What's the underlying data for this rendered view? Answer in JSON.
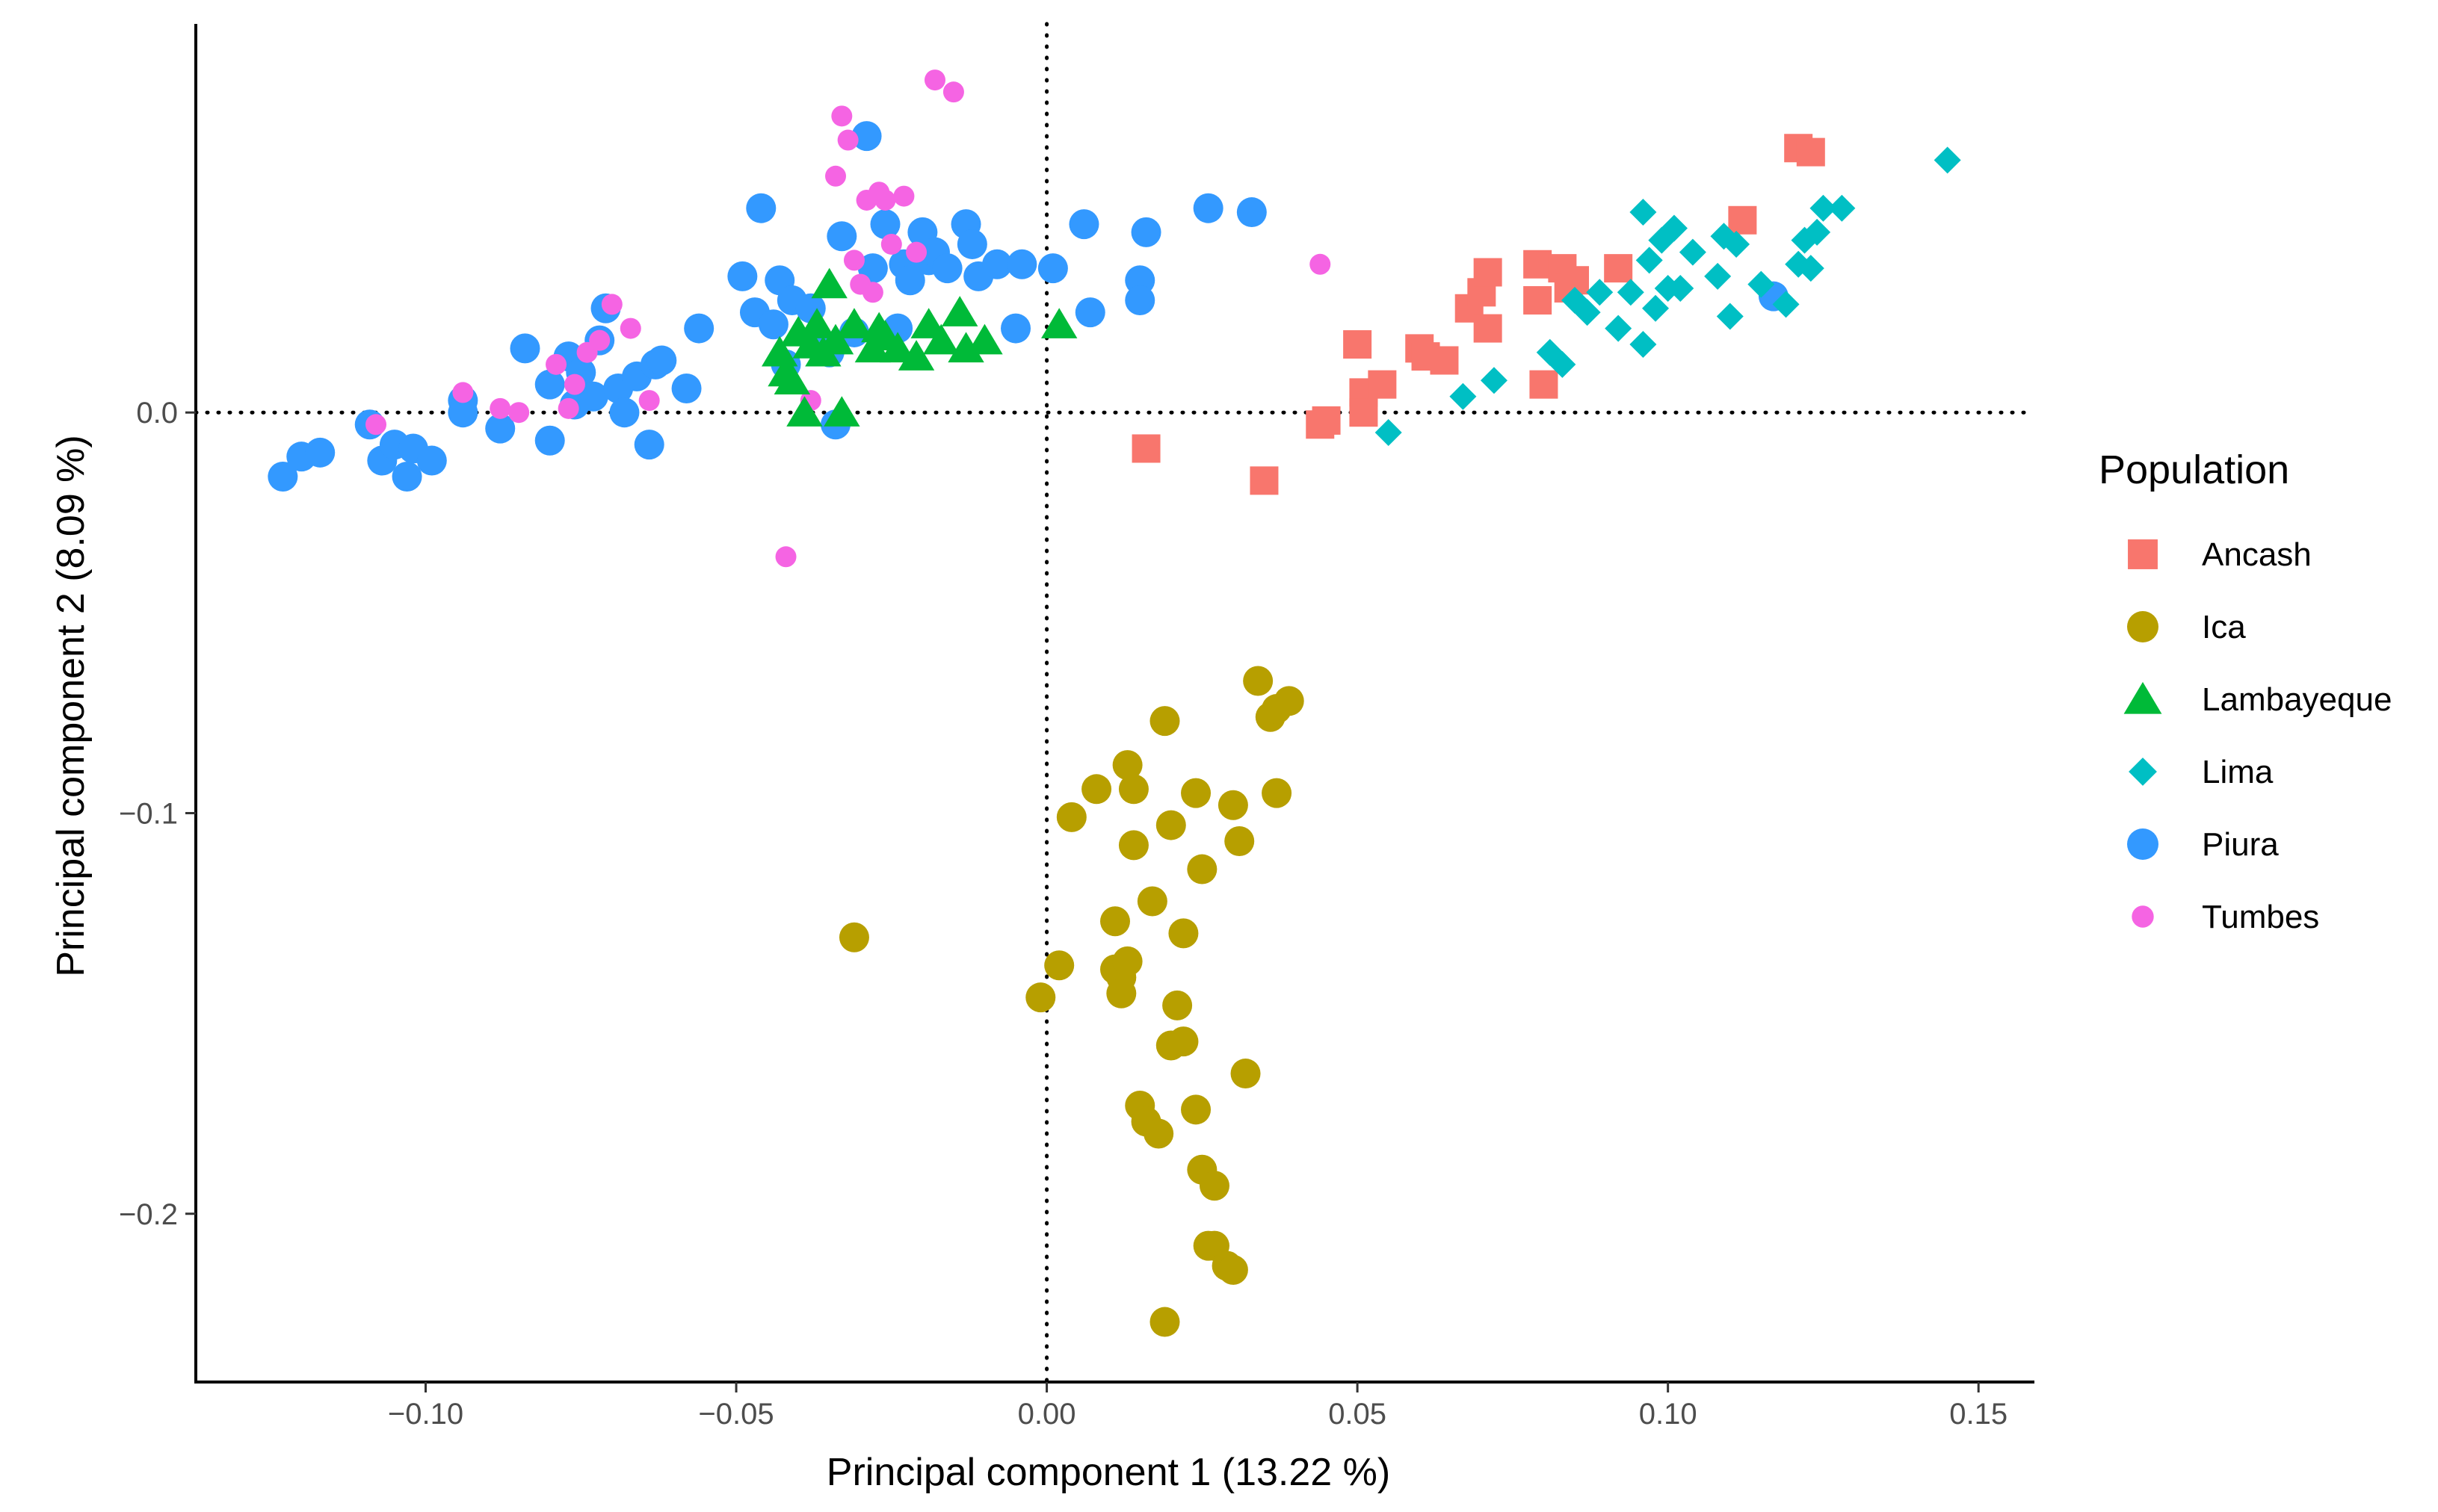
{
  "chart_data": {
    "type": "scatter",
    "title": "",
    "xlabel": "Principal component 1 (13.22 %)",
    "ylabel": "Principal component 2 (8.09 %)",
    "xlim": [
      -0.137,
      0.159
    ],
    "ylim": [
      -0.242,
      0.097
    ],
    "xticks": [
      -0.1,
      -0.05,
      0.0,
      0.05,
      0.1,
      0.15
    ],
    "xtick_labels": [
      "−0.10",
      "−0.05",
      "0.00",
      "0.05",
      "0.10",
      "0.15"
    ],
    "yticks": [
      0.0,
      -0.1,
      -0.2
    ],
    "ytick_labels": [
      "0.0",
      "−0.1",
      "−0.2"
    ],
    "reference_lines": {
      "x": 0,
      "y": 0,
      "style": "dotted"
    },
    "grid": false,
    "legend": {
      "title": "Population",
      "position": "right"
    },
    "series": [
      {
        "name": "Piura",
        "shape": "circle",
        "color": "#3399FF",
        "x": [
          -0.123,
          -0.12,
          -0.117,
          -0.109,
          -0.107,
          -0.105,
          -0.103,
          -0.102,
          -0.099,
          -0.094,
          -0.094,
          -0.088,
          -0.084,
          -0.08,
          -0.08,
          -0.077,
          -0.076,
          -0.075,
          -0.073,
          -0.072,
          -0.071,
          -0.069,
          -0.068,
          -0.066,
          -0.064,
          -0.063,
          -0.062,
          -0.058,
          -0.056,
          -0.049,
          -0.047,
          -0.046,
          -0.044,
          -0.043,
          -0.042,
          -0.041,
          -0.038,
          -0.037,
          -0.035,
          -0.034,
          -0.033,
          -0.031,
          -0.029,
          -0.028,
          -0.026,
          -0.024,
          -0.023,
          -0.022,
          -0.02,
          -0.019,
          -0.018,
          -0.016,
          -0.013,
          -0.012,
          -0.011,
          -0.008,
          -0.005,
          -0.004,
          0.001,
          0.006,
          0.007,
          0.015,
          0.015,
          0.016,
          0.026,
          0.033,
          0.117
        ],
        "y": [
          -0.016,
          -0.011,
          -0.01,
          -0.003,
          -0.012,
          -0.008,
          -0.016,
          -0.009,
          -0.012,
          0.003,
          0.0,
          -0.004,
          0.016,
          0.007,
          -0.007,
          0.014,
          0.002,
          0.01,
          0.004,
          0.018,
          0.026,
          0.006,
          0.0,
          0.009,
          -0.008,
          0.012,
          0.013,
          0.006,
          0.021,
          0.034,
          0.025,
          0.051,
          0.022,
          0.033,
          0.012,
          0.028,
          0.026,
          0.018,
          0.015,
          -0.003,
          0.044,
          0.02,
          0.069,
          0.036,
          0.047,
          0.021,
          0.037,
          0.033,
          0.045,
          0.038,
          0.04,
          0.036,
          0.047,
          0.042,
          0.034,
          0.037,
          0.021,
          0.037,
          0.036,
          0.047,
          0.025,
          0.033,
          0.028,
          0.045,
          0.051,
          0.05,
          0.029
        ]
      },
      {
        "name": "Tumbes",
        "shape": "small-circle",
        "color": "#F564E3",
        "x": [
          -0.108,
          -0.094,
          -0.088,
          -0.085,
          -0.079,
          -0.077,
          -0.076,
          -0.074,
          -0.072,
          -0.07,
          -0.067,
          -0.064,
          -0.042,
          -0.038,
          -0.034,
          -0.033,
          -0.032,
          -0.031,
          -0.03,
          -0.029,
          -0.028,
          -0.027,
          -0.026,
          -0.025,
          -0.023,
          -0.021,
          -0.018,
          -0.015,
          0.044
        ],
        "y": [
          -0.003,
          0.005,
          0.001,
          0.0,
          0.012,
          0.001,
          0.007,
          0.015,
          0.018,
          0.027,
          0.021,
          0.003,
          -0.036,
          0.003,
          0.059,
          0.074,
          0.068,
          0.038,
          0.032,
          0.053,
          0.03,
          0.055,
          0.053,
          0.042,
          0.054,
          0.04,
          0.083,
          0.08,
          0.037
        ]
      },
      {
        "name": "Lambayeque",
        "shape": "triangle",
        "color": "#00BA38",
        "x": [
          -0.043,
          -0.042,
          -0.041,
          -0.04,
          -0.039,
          -0.038,
          -0.037,
          -0.036,
          -0.035,
          -0.034,
          -0.033,
          -0.031,
          -0.028,
          -0.027,
          -0.026,
          -0.024,
          -0.021,
          -0.019,
          -0.017,
          -0.014,
          -0.013,
          -0.01,
          0.002
        ],
        "y": [
          0.015,
          0.01,
          0.008,
          0.02,
          0.0,
          0.017,
          0.022,
          0.015,
          0.032,
          0.018,
          0.0,
          0.022,
          0.016,
          0.021,
          0.019,
          0.016,
          0.014,
          0.022,
          0.018,
          0.025,
          0.016,
          0.018,
          0.022
        ]
      },
      {
        "name": "Ancash",
        "shape": "square",
        "color": "#F8766D",
        "x": [
          0.016,
          0.035,
          0.044,
          0.045,
          0.05,
          0.051,
          0.051,
          0.054,
          0.06,
          0.061,
          0.064,
          0.068,
          0.07,
          0.071,
          0.071,
          0.079,
          0.079,
          0.08,
          0.083,
          0.084,
          0.085,
          0.092,
          0.112,
          0.121,
          0.123
        ],
        "y": [
          -0.009,
          -0.017,
          -0.003,
          -0.002,
          0.017,
          0.005,
          0.0,
          0.007,
          0.016,
          0.014,
          0.013,
          0.026,
          0.03,
          0.035,
          0.021,
          0.028,
          0.037,
          0.007,
          0.036,
          0.031,
          0.033,
          0.036,
          0.048,
          0.066,
          0.065
        ]
      },
      {
        "name": "Lima",
        "shape": "diamond",
        "color": "#00BFC4",
        "x": [
          0.055,
          0.067,
          0.072,
          0.081,
          0.083,
          0.085,
          0.087,
          0.089,
          0.092,
          0.094,
          0.096,
          0.096,
          0.097,
          0.098,
          0.099,
          0.1,
          0.101,
          0.102,
          0.104,
          0.108,
          0.109,
          0.11,
          0.111,
          0.115,
          0.119,
          0.121,
          0.122,
          0.123,
          0.124,
          0.125,
          0.128,
          0.145
        ],
        "y": [
          -0.005,
          0.004,
          0.008,
          0.015,
          0.012,
          0.028,
          0.025,
          0.03,
          0.021,
          0.03,
          0.05,
          0.017,
          0.038,
          0.026,
          0.043,
          0.031,
          0.046,
          0.031,
          0.04,
          0.034,
          0.044,
          0.024,
          0.042,
          0.032,
          0.027,
          0.037,
          0.043,
          0.036,
          0.045,
          0.051,
          0.051,
          0.063
        ]
      },
      {
        "name": "Ica",
        "shape": "circle",
        "color": "#B79F00",
        "x": [
          -0.031,
          -0.001,
          0.002,
          0.004,
          0.008,
          0.011,
          0.011,
          0.012,
          0.012,
          0.013,
          0.013,
          0.014,
          0.014,
          0.015,
          0.016,
          0.017,
          0.018,
          0.019,
          0.019,
          0.02,
          0.02,
          0.021,
          0.022,
          0.022,
          0.024,
          0.024,
          0.025,
          0.025,
          0.026,
          0.027,
          0.027,
          0.029,
          0.03,
          0.03,
          0.031,
          0.032,
          0.034,
          0.036,
          0.037,
          0.037,
          0.039
        ],
        "y": [
          -0.131,
          -0.146,
          -0.138,
          -0.101,
          -0.094,
          -0.127,
          -0.139,
          -0.141,
          -0.145,
          -0.088,
          -0.137,
          -0.094,
          -0.108,
          -0.173,
          -0.177,
          -0.122,
          -0.18,
          -0.077,
          -0.227,
          -0.103,
          -0.158,
          -0.148,
          -0.157,
          -0.13,
          -0.174,
          -0.095,
          -0.189,
          -0.114,
          -0.208,
          -0.193,
          -0.208,
          -0.213,
          -0.098,
          -0.214,
          -0.107,
          -0.165,
          -0.067,
          -0.076,
          -0.074,
          -0.095,
          -0.072
        ]
      }
    ]
  }
}
